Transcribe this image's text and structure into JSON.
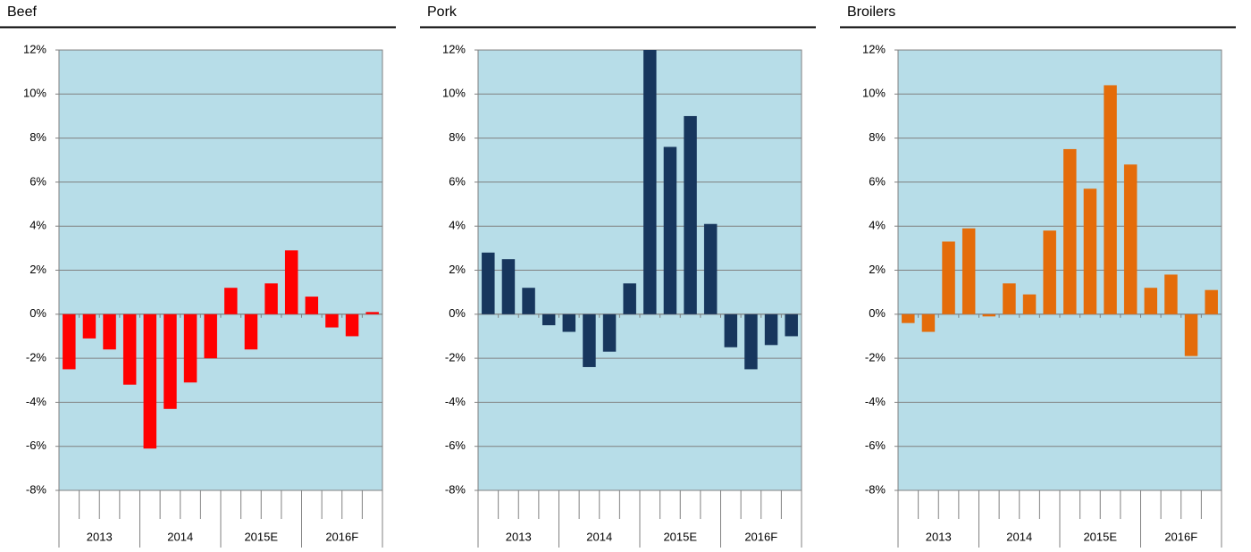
{
  "chart_data": [
    {
      "type": "bar",
      "title": "Beef",
      "color": "#ff0000",
      "grid": true,
      "categories": [
        null,
        null,
        null,
        null,
        null,
        null,
        null,
        null,
        null,
        null,
        null,
        null,
        null,
        null,
        null,
        null
      ],
      "groups": [
        "2013",
        "2014",
        "2015E",
        "2016F"
      ],
      "values": [
        -2.5,
        -1.1,
        -1.6,
        -3.2,
        -6.1,
        -4.3,
        -3.1,
        -2.0,
        1.2,
        -1.6,
        1.4,
        2.9,
        0.8,
        -0.6,
        -1.0,
        0.1
      ],
      "ylim": [
        -8,
        12
      ],
      "yticks": [
        {
          "value": -8,
          "label": "-8%"
        },
        {
          "value": -6,
          "label": "-6%"
        },
        {
          "value": -4,
          "label": "-4%"
        },
        {
          "value": -2,
          "label": "-2%"
        },
        {
          "value": 0,
          "label": "0%"
        },
        {
          "value": 2,
          "label": "2%"
        },
        {
          "value": 4,
          "label": "4%"
        },
        {
          "value": 6,
          "label": "6%"
        },
        {
          "value": 8,
          "label": "8%"
        },
        {
          "value": 10,
          "label": "10%"
        },
        {
          "value": 12,
          "label": "12%"
        }
      ]
    },
    {
      "type": "bar",
      "title": "Pork",
      "color": "#17365d",
      "grid": true,
      "categories": [
        null,
        null,
        null,
        null,
        null,
        null,
        null,
        null,
        null,
        null,
        null,
        null,
        null,
        null,
        null,
        null
      ],
      "groups": [
        "2013",
        "2014",
        "2015E",
        "2016F"
      ],
      "values": [
        2.8,
        2.5,
        1.2,
        -0.5,
        -0.8,
        -2.4,
        -1.7,
        1.4,
        12.0,
        7.6,
        9.0,
        4.1,
        -1.5,
        -2.5,
        -1.4,
        -1.0
      ],
      "ylim": [
        -8,
        12
      ],
      "yticks": [
        {
          "value": -8,
          "label": "-8%"
        },
        {
          "value": -6,
          "label": "-6%"
        },
        {
          "value": -4,
          "label": "-4%"
        },
        {
          "value": -2,
          "label": "-2%"
        },
        {
          "value": 0,
          "label": "0%"
        },
        {
          "value": 2,
          "label": "2%"
        },
        {
          "value": 4,
          "label": "4%"
        },
        {
          "value": 6,
          "label": "6%"
        },
        {
          "value": 8,
          "label": "8%"
        },
        {
          "value": 10,
          "label": "10%"
        },
        {
          "value": 12,
          "label": "12%"
        }
      ]
    },
    {
      "type": "bar",
      "title": "Broilers",
      "color": "#e46c0a",
      "grid": true,
      "categories": [
        null,
        null,
        null,
        null,
        null,
        null,
        null,
        null,
        null,
        null,
        null,
        null,
        null,
        null,
        null,
        null
      ],
      "groups": [
        "2013",
        "2014",
        "2015E",
        "2016F"
      ],
      "values": [
        -0.4,
        -0.8,
        3.3,
        3.9,
        -0.1,
        1.4,
        0.9,
        3.8,
        7.5,
        5.7,
        10.4,
        6.8,
        1.2,
        1.8,
        -1.9,
        1.1
      ],
      "ylim": [
        -8,
        12
      ],
      "yticks": [
        {
          "value": -8,
          "label": "-8%"
        },
        {
          "value": -6,
          "label": "-6%"
        },
        {
          "value": -4,
          "label": "-4%"
        },
        {
          "value": -2,
          "label": "-2%"
        },
        {
          "value": 0,
          "label": "0%"
        },
        {
          "value": 2,
          "label": "2%"
        },
        {
          "value": 4,
          "label": "4%"
        },
        {
          "value": 6,
          "label": "6%"
        },
        {
          "value": 8,
          "label": "8%"
        },
        {
          "value": 10,
          "label": "10%"
        },
        {
          "value": 12,
          "label": "12%"
        }
      ]
    }
  ]
}
